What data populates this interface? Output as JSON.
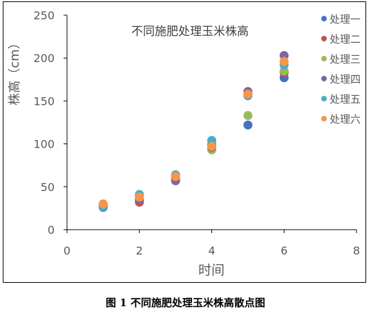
{
  "chart_data": {
    "type": "scatter",
    "title": "不同施肥处理玉米株高",
    "xlabel": "时间",
    "ylabel": "株高（cm）",
    "xlim": [
      0,
      8
    ],
    "ylim": [
      0,
      250
    ],
    "xticks": [
      0,
      2,
      4,
      6,
      8
    ],
    "yticks": [
      0,
      50,
      100,
      150,
      200,
      250
    ],
    "grid": false,
    "legend_position": "right",
    "series": [
      {
        "name": "处理一",
        "color": "#4472C4",
        "x": [
          1,
          2,
          3,
          4,
          5,
          6
        ],
        "y": [
          26,
          34,
          60,
          99,
          122,
          177
        ]
      },
      {
        "name": "处理二",
        "color": "#C0504D",
        "x": [
          1,
          2,
          3,
          4,
          5,
          6
        ],
        "y": [
          28,
          32,
          60,
          97,
          158,
          183
        ]
      },
      {
        "name": "处理三",
        "color": "#9BBB59",
        "x": [
          1,
          2,
          3,
          4,
          5,
          6
        ],
        "y": [
          29,
          38,
          61,
          93,
          133,
          185
        ]
      },
      {
        "name": "处理四",
        "color": "#8064A2",
        "x": [
          1,
          2,
          3,
          4,
          5,
          6
        ],
        "y": [
          29,
          35,
          57,
          96,
          161,
          203
        ]
      },
      {
        "name": "处理五",
        "color": "#4BACC6",
        "x": [
          1,
          2,
          3,
          4,
          5,
          6
        ],
        "y": [
          27,
          41,
          64,
          104,
          156,
          192
        ]
      },
      {
        "name": "处理六",
        "color": "#F79646",
        "x": [
          1,
          2,
          3,
          4,
          5,
          6
        ],
        "y": [
          30,
          38,
          62,
          97,
          158,
          196
        ]
      }
    ]
  },
  "caption": "图 1  不同施肥处理玉米株高散点图"
}
